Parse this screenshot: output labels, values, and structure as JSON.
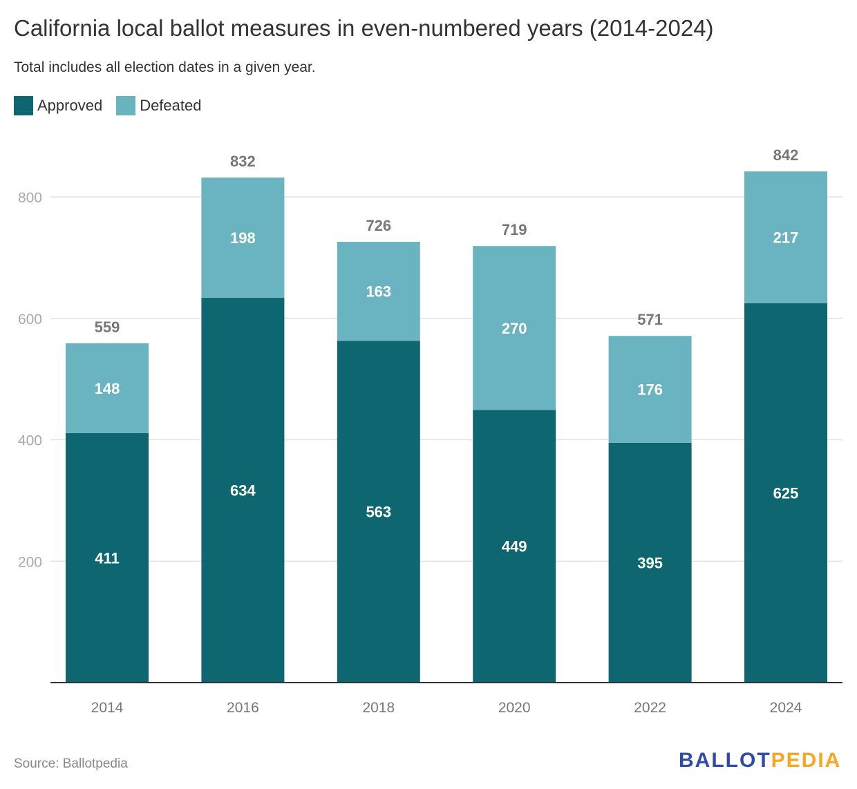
{
  "chart_data": {
    "type": "bar",
    "stacked": true,
    "title": "California local ballot measures in even-numbered years (2014-2024)",
    "subtitle": "Total includes all election dates in a given year.",
    "categories": [
      "2014",
      "2016",
      "2018",
      "2020",
      "2022",
      "2024"
    ],
    "series": [
      {
        "name": "Approved",
        "color": "#0e6670",
        "values": [
          411,
          634,
          563,
          449,
          395,
          625
        ]
      },
      {
        "name": "Defeated",
        "color": "#6ab4c2",
        "values": [
          148,
          198,
          163,
          270,
          176,
          217
        ]
      }
    ],
    "totals": [
      559,
      832,
      726,
      719,
      571,
      842
    ],
    "yticks": [
      200,
      400,
      600,
      800
    ],
    "ylim": [
      0,
      880
    ],
    "grid": true,
    "legend": "top-left",
    "xlabel": "",
    "ylabel": ""
  },
  "footer": {
    "source": "Source: Ballotpedia",
    "logo_part1": "BALLOT",
    "logo_part2": "PEDIA",
    "logo_color1": "#2f4aa8",
    "logo_color2": "#f5a623"
  }
}
